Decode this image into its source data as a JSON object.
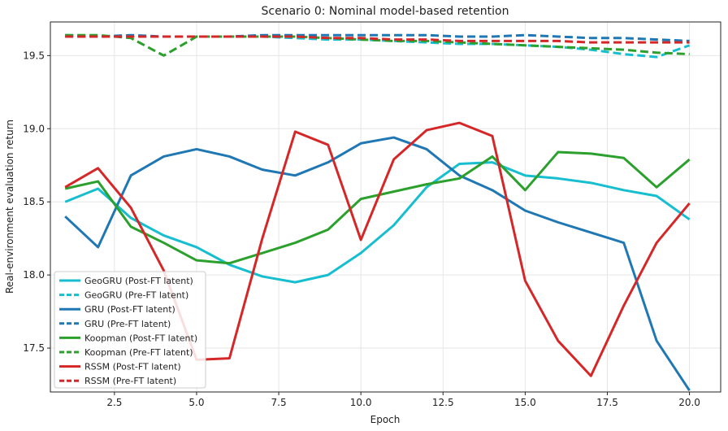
{
  "chart_data": {
    "type": "line",
    "title": "Scenario 0: Nominal model-based retention",
    "xlabel": "Epoch",
    "ylabel": "Real-environment evaluation return",
    "xlim": [
      0.55,
      20.95
    ],
    "ylim": [
      17.2,
      19.73
    ],
    "xticks": [
      2.5,
      5.0,
      7.5,
      10.0,
      12.5,
      15.0,
      17.5,
      20.0
    ],
    "xtick_labels": [
      "2.5",
      "5.0",
      "7.5",
      "10.0",
      "12.5",
      "15.0",
      "17.5",
      "20.0"
    ],
    "yticks": [
      17.5,
      18.0,
      18.5,
      19.0,
      19.5
    ],
    "ytick_labels": [
      "17.5",
      "18.0",
      "18.5",
      "19.0",
      "19.5"
    ],
    "grid": true,
    "legend_position": "lower-left",
    "x": [
      1,
      2,
      3,
      4,
      5,
      6,
      7,
      8,
      9,
      10,
      11,
      12,
      13,
      14,
      15,
      16,
      17,
      18,
      19,
      20
    ],
    "series": [
      {
        "name": "GeoGRU (Post-FT latent)",
        "color": "#17becf",
        "style": "solid",
        "values": [
          18.5,
          18.59,
          18.39,
          18.27,
          18.19,
          18.07,
          17.99,
          17.95,
          18.0,
          18.15,
          18.34,
          18.6,
          18.76,
          18.77,
          18.68,
          18.66,
          18.63,
          18.58,
          18.54,
          18.38
        ]
      },
      {
        "name": "GeoGRU (Pre-FT latent)",
        "color": "#17becf",
        "style": "dashed",
        "values": [
          19.63,
          19.63,
          19.63,
          19.63,
          19.63,
          19.63,
          19.63,
          19.62,
          19.61,
          19.61,
          19.6,
          19.59,
          19.58,
          19.58,
          19.57,
          19.56,
          19.54,
          19.51,
          19.49,
          19.57
        ]
      },
      {
        "name": "GRU (Post-FT latent)",
        "color": "#1f77b4",
        "style": "solid",
        "values": [
          18.4,
          18.19,
          18.68,
          18.81,
          18.86,
          18.81,
          18.72,
          18.68,
          18.77,
          18.9,
          18.94,
          18.86,
          18.68,
          18.58,
          18.44,
          18.36,
          18.29,
          18.22,
          17.55,
          17.21
        ]
      },
      {
        "name": "GRU (Pre-FT latent)",
        "color": "#1f77b4",
        "style": "dashed",
        "values": [
          19.64,
          19.63,
          19.64,
          19.63,
          19.63,
          19.63,
          19.64,
          19.64,
          19.64,
          19.64,
          19.64,
          19.64,
          19.63,
          19.63,
          19.64,
          19.63,
          19.62,
          19.62,
          19.61,
          19.6
        ]
      },
      {
        "name": "Koopman (Post-FT latent)",
        "color": "#2ca02c",
        "style": "solid",
        "values": [
          18.59,
          18.64,
          18.33,
          18.22,
          18.1,
          18.08,
          18.15,
          18.22,
          18.31,
          18.52,
          18.57,
          18.62,
          18.66,
          18.81,
          18.58,
          18.84,
          18.83,
          18.8,
          18.6,
          18.79
        ]
      },
      {
        "name": "Koopman (Pre-FT latent)",
        "color": "#2ca02c",
        "style": "dashed",
        "values": [
          19.64,
          19.64,
          19.62,
          19.5,
          19.63,
          19.63,
          19.63,
          19.63,
          19.62,
          19.61,
          19.6,
          19.6,
          19.59,
          19.58,
          19.57,
          19.56,
          19.55,
          19.54,
          19.52,
          19.51
        ]
      },
      {
        "name": "RSSM (Post-FT latent)",
        "color": "#d62728",
        "style": "solid",
        "values": [
          18.6,
          18.73,
          18.46,
          18.03,
          17.42,
          17.43,
          18.25,
          18.98,
          18.89,
          18.24,
          18.79,
          18.99,
          19.04,
          18.95,
          17.96,
          17.55,
          17.31,
          17.79,
          18.22,
          18.49
        ]
      },
      {
        "name": "RSSM (Pre-FT latent)",
        "color": "#d62728",
        "style": "dashed",
        "values": [
          19.63,
          19.63,
          19.63,
          19.63,
          19.63,
          19.63,
          19.63,
          19.63,
          19.62,
          19.62,
          19.61,
          19.61,
          19.6,
          19.6,
          19.6,
          19.6,
          19.59,
          19.59,
          19.59,
          19.59
        ]
      }
    ]
  }
}
